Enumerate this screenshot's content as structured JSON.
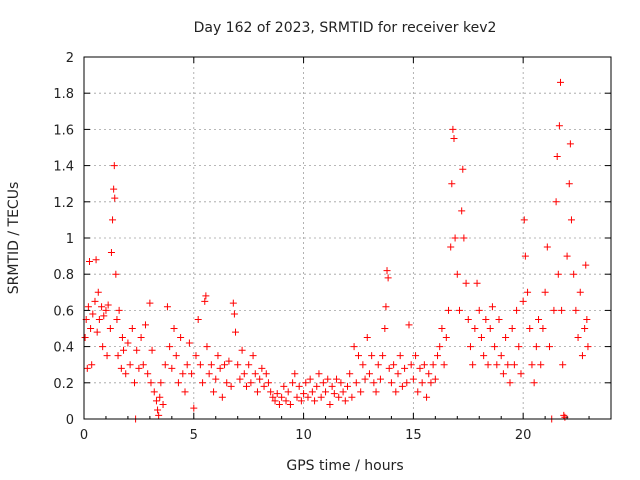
{
  "chart_data": {
    "type": "scatter",
    "title": "Day 162 of 2023, SRMTID for receiver kev2",
    "xlabel": "GPS time / hours",
    "ylabel": "SRMTID / TECUs",
    "xlim": [
      0,
      24
    ],
    "ylim": [
      0,
      2
    ],
    "xticks": [
      0,
      5,
      10,
      15,
      20
    ],
    "yticks": [
      0,
      0.2,
      0.4,
      0.6,
      0.8,
      1,
      1.2,
      1.4,
      1.6,
      1.8,
      2
    ],
    "xtick_labels": [
      "0",
      "5",
      "10",
      "15",
      "20"
    ],
    "ytick_labels": [
      "0",
      "0.2",
      "0.4",
      "0.6",
      "0.8",
      "1",
      "1.2",
      "1.4",
      "1.6",
      "1.8",
      "2"
    ],
    "marker": "+",
    "color": "#ff0000",
    "grid": true,
    "series": [
      {
        "name": "kev2",
        "points": [
          [
            0.05,
            0.45
          ],
          [
            0.1,
            0.55
          ],
          [
            0.15,
            0.28
          ],
          [
            0.2,
            0.62
          ],
          [
            0.25,
            0.87
          ],
          [
            0.3,
            0.5
          ],
          [
            0.35,
            0.3
          ],
          [
            0.4,
            0.58
          ],
          [
            0.5,
            0.65
          ],
          [
            0.55,
            0.88
          ],
          [
            0.6,
            0.48
          ],
          [
            0.65,
            0.7
          ],
          [
            0.7,
            0.55
          ],
          [
            0.8,
            0.62
          ],
          [
            0.85,
            0.4
          ],
          [
            0.9,
            0.57
          ],
          [
            1.0,
            0.6
          ],
          [
            1.05,
            0.35
          ],
          [
            1.1,
            0.63
          ],
          [
            1.2,
            0.5
          ],
          [
            1.25,
            0.92
          ],
          [
            1.3,
            1.1
          ],
          [
            1.35,
            1.27
          ],
          [
            1.38,
            1.4
          ],
          [
            1.4,
            1.22
          ],
          [
            1.45,
            0.8
          ],
          [
            1.5,
            0.55
          ],
          [
            1.55,
            0.35
          ],
          [
            1.6,
            0.6
          ],
          [
            1.7,
            0.28
          ],
          [
            1.75,
            0.45
          ],
          [
            1.8,
            0.38
          ],
          [
            1.9,
            0.25
          ],
          [
            2.0,
            0.42
          ],
          [
            2.1,
            0.3
          ],
          [
            2.2,
            0.5
          ],
          [
            2.3,
            0.2
          ],
          [
            2.35,
            0.0
          ],
          [
            2.4,
            0.38
          ],
          [
            2.5,
            0.28
          ],
          [
            2.6,
            0.45
          ],
          [
            2.7,
            0.3
          ],
          [
            2.8,
            0.52
          ],
          [
            2.9,
            0.25
          ],
          [
            3.0,
            0.64
          ],
          [
            3.05,
            0.2
          ],
          [
            3.1,
            0.38
          ],
          [
            3.2,
            0.15
          ],
          [
            3.3,
            0.1
          ],
          [
            3.35,
            0.05
          ],
          [
            3.4,
            0.02
          ],
          [
            3.45,
            0.12
          ],
          [
            3.5,
            0.2
          ],
          [
            3.6,
            0.08
          ],
          [
            3.7,
            0.3
          ],
          [
            3.8,
            0.62
          ],
          [
            3.9,
            0.4
          ],
          [
            4.0,
            0.28
          ],
          [
            4.1,
            0.5
          ],
          [
            4.2,
            0.35
          ],
          [
            4.3,
            0.2
          ],
          [
            4.4,
            0.45
          ],
          [
            4.5,
            0.25
          ],
          [
            4.6,
            0.15
          ],
          [
            4.7,
            0.3
          ],
          [
            4.8,
            0.42
          ],
          [
            4.9,
            0.25
          ],
          [
            5.0,
            0.06
          ],
          [
            5.1,
            0.35
          ],
          [
            5.2,
            0.55
          ],
          [
            5.3,
            0.3
          ],
          [
            5.4,
            0.2
          ],
          [
            5.5,
            0.65
          ],
          [
            5.55,
            0.68
          ],
          [
            5.6,
            0.4
          ],
          [
            5.7,
            0.25
          ],
          [
            5.8,
            0.3
          ],
          [
            5.9,
            0.15
          ],
          [
            6.0,
            0.22
          ],
          [
            6.1,
            0.35
          ],
          [
            6.2,
            0.28
          ],
          [
            6.3,
            0.12
          ],
          [
            6.4,
            0.3
          ],
          [
            6.5,
            0.2
          ],
          [
            6.6,
            0.32
          ],
          [
            6.7,
            0.18
          ],
          [
            6.8,
            0.64
          ],
          [
            6.85,
            0.58
          ],
          [
            6.9,
            0.48
          ],
          [
            7.0,
            0.3
          ],
          [
            7.1,
            0.22
          ],
          [
            7.2,
            0.38
          ],
          [
            7.3,
            0.25
          ],
          [
            7.4,
            0.18
          ],
          [
            7.5,
            0.3
          ],
          [
            7.6,
            0.2
          ],
          [
            7.7,
            0.35
          ],
          [
            7.8,
            0.25
          ],
          [
            7.9,
            0.15
          ],
          [
            8.0,
            0.22
          ],
          [
            8.1,
            0.28
          ],
          [
            8.2,
            0.18
          ],
          [
            8.3,
            0.25
          ],
          [
            8.4,
            0.2
          ],
          [
            8.5,
            0.15
          ],
          [
            8.6,
            0.12
          ],
          [
            8.7,
            0.1
          ],
          [
            8.8,
            0.14
          ],
          [
            8.9,
            0.08
          ],
          [
            9.0,
            0.12
          ],
          [
            9.1,
            0.18
          ],
          [
            9.2,
            0.1
          ],
          [
            9.3,
            0.15
          ],
          [
            9.4,
            0.08
          ],
          [
            9.5,
            0.2
          ],
          [
            9.6,
            0.25
          ],
          [
            9.7,
            0.12
          ],
          [
            9.8,
            0.18
          ],
          [
            9.9,
            0.1
          ],
          [
            10.0,
            0.14
          ],
          [
            10.1,
            0.2
          ],
          [
            10.2,
            0.12
          ],
          [
            10.3,
            0.22
          ],
          [
            10.4,
            0.15
          ],
          [
            10.5,
            0.1
          ],
          [
            10.6,
            0.18
          ],
          [
            10.7,
            0.25
          ],
          [
            10.8,
            0.12
          ],
          [
            10.9,
            0.2
          ],
          [
            11.0,
            0.15
          ],
          [
            11.1,
            0.22
          ],
          [
            11.2,
            0.08
          ],
          [
            11.3,
            0.18
          ],
          [
            11.4,
            0.14
          ],
          [
            11.5,
            0.22
          ],
          [
            11.6,
            0.12
          ],
          [
            11.7,
            0.2
          ],
          [
            11.8,
            0.15
          ],
          [
            11.9,
            0.1
          ],
          [
            12.0,
            0.18
          ],
          [
            12.1,
            0.25
          ],
          [
            12.2,
            0.12
          ],
          [
            12.3,
            0.4
          ],
          [
            12.4,
            0.2
          ],
          [
            12.5,
            0.35
          ],
          [
            12.6,
            0.15
          ],
          [
            12.7,
            0.3
          ],
          [
            12.8,
            0.22
          ],
          [
            12.9,
            0.45
          ],
          [
            13.0,
            0.25
          ],
          [
            13.1,
            0.35
          ],
          [
            13.2,
            0.2
          ],
          [
            13.3,
            0.15
          ],
          [
            13.4,
            0.3
          ],
          [
            13.5,
            0.22
          ],
          [
            13.6,
            0.35
          ],
          [
            13.7,
            0.5
          ],
          [
            13.75,
            0.62
          ],
          [
            13.8,
            0.82
          ],
          [
            13.85,
            0.78
          ],
          [
            13.9,
            0.28
          ],
          [
            14.0,
            0.2
          ],
          [
            14.1,
            0.3
          ],
          [
            14.2,
            0.15
          ],
          [
            14.3,
            0.25
          ],
          [
            14.4,
            0.35
          ],
          [
            14.5,
            0.18
          ],
          [
            14.6,
            0.28
          ],
          [
            14.7,
            0.2
          ],
          [
            14.8,
            0.52
          ],
          [
            14.9,
            0.3
          ],
          [
            15.0,
            0.22
          ],
          [
            15.1,
            0.35
          ],
          [
            15.2,
            0.15
          ],
          [
            15.3,
            0.28
          ],
          [
            15.4,
            0.2
          ],
          [
            15.5,
            0.3
          ],
          [
            15.6,
            0.12
          ],
          [
            15.7,
            0.25
          ],
          [
            15.8,
            0.2
          ],
          [
            15.9,
            0.3
          ],
          [
            16.0,
            0.22
          ],
          [
            16.1,
            0.35
          ],
          [
            16.2,
            0.4
          ],
          [
            16.3,
            0.5
          ],
          [
            16.4,
            0.3
          ],
          [
            16.5,
            0.45
          ],
          [
            16.6,
            0.6
          ],
          [
            16.7,
            0.95
          ],
          [
            16.75,
            1.3
          ],
          [
            16.8,
            1.6
          ],
          [
            16.85,
            1.55
          ],
          [
            16.9,
            1.0
          ],
          [
            17.0,
            0.8
          ],
          [
            17.1,
            0.6
          ],
          [
            17.2,
            1.15
          ],
          [
            17.25,
            1.38
          ],
          [
            17.3,
            1.0
          ],
          [
            17.4,
            0.75
          ],
          [
            17.5,
            0.55
          ],
          [
            17.6,
            0.4
          ],
          [
            17.7,
            0.3
          ],
          [
            17.8,
            0.5
          ],
          [
            17.9,
            0.75
          ],
          [
            18.0,
            0.6
          ],
          [
            18.1,
            0.45
          ],
          [
            18.2,
            0.35
          ],
          [
            18.3,
            0.55
          ],
          [
            18.4,
            0.3
          ],
          [
            18.5,
            0.5
          ],
          [
            18.6,
            0.62
          ],
          [
            18.7,
            0.4
          ],
          [
            18.8,
            0.3
          ],
          [
            18.9,
            0.55
          ],
          [
            19.0,
            0.35
          ],
          [
            19.1,
            0.25
          ],
          [
            19.2,
            0.45
          ],
          [
            19.3,
            0.3
          ],
          [
            19.4,
            0.2
          ],
          [
            19.5,
            0.5
          ],
          [
            19.6,
            0.3
          ],
          [
            19.7,
            0.6
          ],
          [
            19.8,
            0.4
          ],
          [
            19.9,
            0.25
          ],
          [
            20.0,
            0.65
          ],
          [
            20.05,
            1.1
          ],
          [
            20.1,
            0.9
          ],
          [
            20.2,
            0.7
          ],
          [
            20.3,
            0.5
          ],
          [
            20.4,
            0.3
          ],
          [
            20.5,
            0.2
          ],
          [
            20.6,
            0.4
          ],
          [
            20.7,
            0.55
          ],
          [
            20.8,
            0.3
          ],
          [
            20.9,
            0.5
          ],
          [
            21.0,
            0.7
          ],
          [
            21.1,
            0.95
          ],
          [
            21.2,
            0.4
          ],
          [
            21.3,
            0.0
          ],
          [
            21.4,
            0.6
          ],
          [
            21.5,
            1.2
          ],
          [
            21.55,
            1.45
          ],
          [
            21.6,
            0.8
          ],
          [
            21.65,
            1.62
          ],
          [
            21.7,
            1.86
          ],
          [
            21.75,
            0.6
          ],
          [
            21.8,
            0.3
          ],
          [
            21.85,
            0.02
          ],
          [
            21.9,
            0.01
          ],
          [
            22.0,
            0.9
          ],
          [
            22.1,
            1.3
          ],
          [
            22.15,
            1.52
          ],
          [
            22.2,
            1.1
          ],
          [
            22.3,
            0.8
          ],
          [
            22.4,
            0.6
          ],
          [
            22.5,
            0.45
          ],
          [
            22.6,
            0.7
          ],
          [
            22.7,
            0.35
          ],
          [
            22.8,
            0.5
          ],
          [
            22.85,
            0.85
          ],
          [
            22.9,
            0.55
          ],
          [
            22.95,
            0.4
          ]
        ]
      }
    ]
  }
}
